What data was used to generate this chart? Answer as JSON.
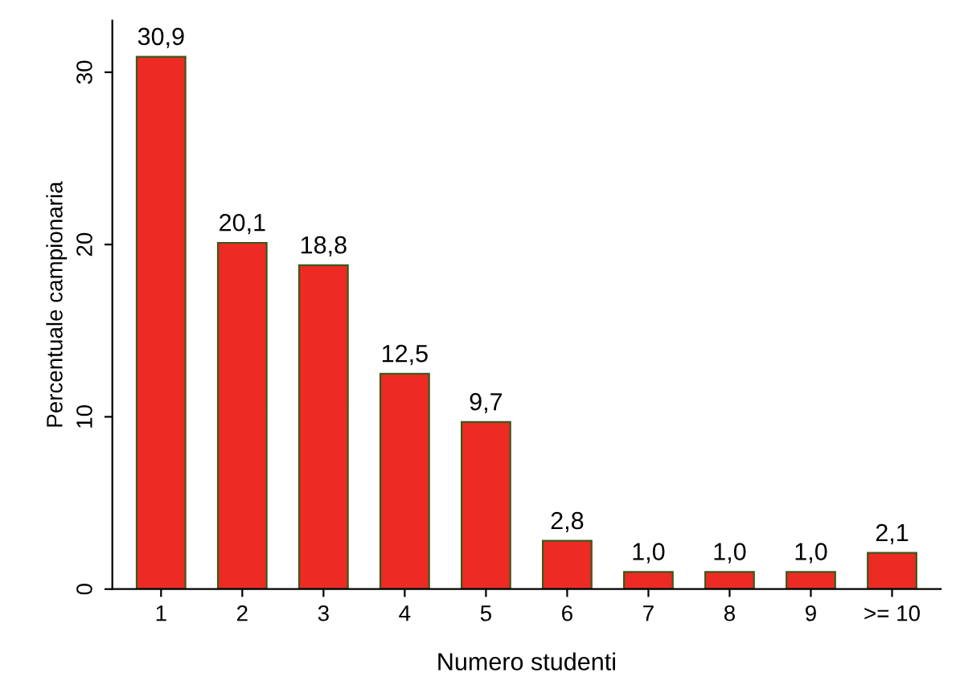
{
  "chart_data": {
    "type": "bar",
    "xlabel": "Numero studenti",
    "ylabel": "Percentuale campionaria",
    "categories": [
      "1",
      "2",
      "3",
      "4",
      "5",
      "6",
      "7",
      "8",
      "9",
      ">= 10"
    ],
    "values": [
      30.9,
      20.1,
      18.8,
      12.5,
      9.7,
      2.8,
      1.0,
      1.0,
      1.0,
      2.1
    ],
    "value_labels": [
      "30,9",
      "20,1",
      "18,8",
      "12,5",
      "9,7",
      "2,8",
      "1,0",
      "1,0",
      "1,0",
      "2,1"
    ],
    "color": "#ee2a24",
    "ylim": [
      0,
      33
    ],
    "yticks": [
      0,
      10,
      20,
      30
    ],
    "grid": false,
    "legend": false
  }
}
